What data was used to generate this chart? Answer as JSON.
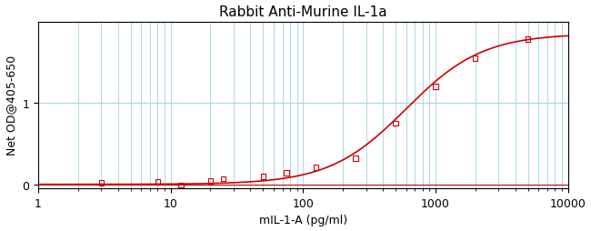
{
  "title": "Rabbit Anti-Murine IL-1a",
  "xlabel": "mIL-1-A (pg/ml)",
  "ylabel": "Net OD@405-650",
  "x_data": [
    3,
    8,
    12,
    20,
    25,
    50,
    75,
    125,
    250,
    500,
    1000,
    2000,
    5000
  ],
  "y_data": [
    0.02,
    0.03,
    -0.01,
    0.04,
    0.07,
    0.1,
    0.14,
    0.21,
    0.32,
    0.75,
    1.2,
    1.55,
    1.78
  ],
  "xlim": [
    1,
    10000
  ],
  "ylim": [
    -0.05,
    2.0
  ],
  "curve_color": "#cc0000",
  "marker_color": "#cc0000",
  "grid_color": "#add8e6",
  "background_color": "#ffffff",
  "title_fontsize": 11,
  "label_fontsize": 9,
  "yticks": [
    0,
    1
  ],
  "four_pl_params": [
    1.85,
    1.5,
    600,
    0.0
  ]
}
